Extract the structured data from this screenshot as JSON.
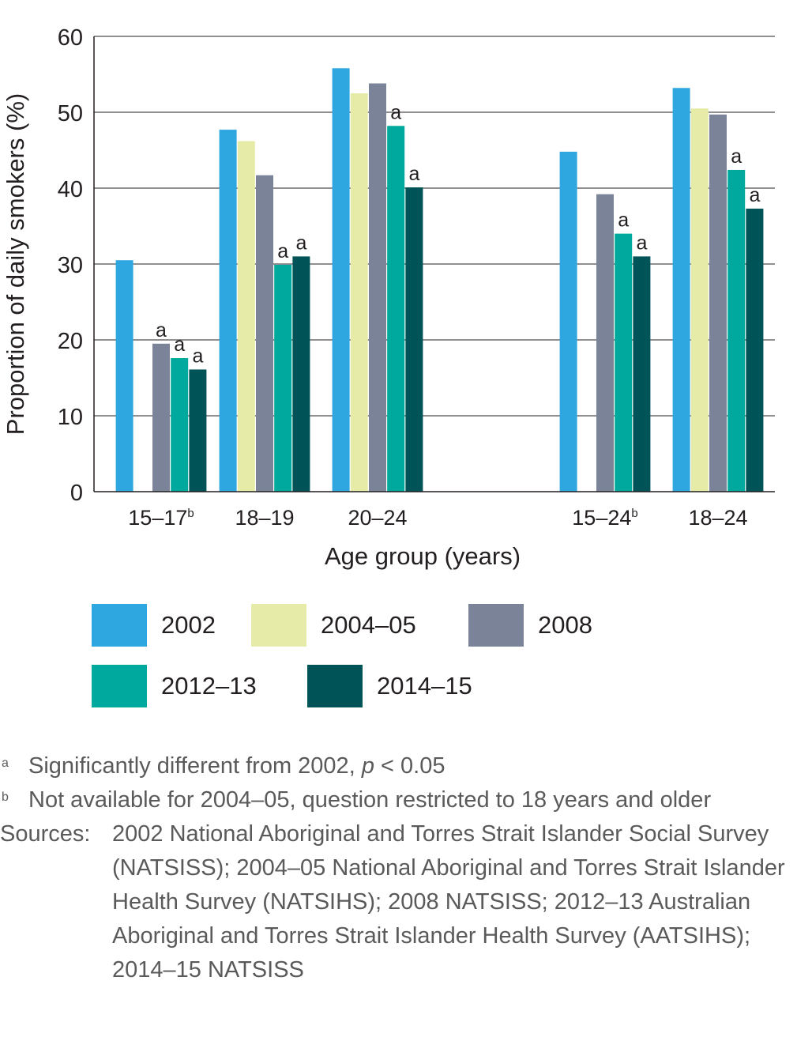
{
  "chart_data": {
    "type": "bar",
    "title": "",
    "ylabel": "Proportion of daily smokers (%)",
    "xlabel": "Age group (years)",
    "ylim": [
      0,
      60
    ],
    "yticks": [
      "0",
      "10",
      "20",
      "30",
      "40",
      "50",
      "60"
    ],
    "grid": true,
    "categories": [
      {
        "label": "15–17",
        "sup": "b"
      },
      {
        "label": "18–19",
        "sup": ""
      },
      {
        "label": "20–24",
        "sup": ""
      },
      {
        "label": "15–24",
        "sup": "b"
      },
      {
        "label": "18–24",
        "sup": ""
      }
    ],
    "series": [
      {
        "name": "2002",
        "color": "#2ea7e0",
        "values": [
          30.5,
          47.7,
          55.8,
          44.8,
          53.2
        ],
        "flags": [
          "",
          "",
          "",
          "",
          ""
        ]
      },
      {
        "name": "2004–05",
        "color": "#e6eca8",
        "values": [
          null,
          46.2,
          52.5,
          null,
          50.5
        ],
        "flags": [
          "",
          "",
          "",
          "",
          ""
        ]
      },
      {
        "name": "2008",
        "color": "#7a8398",
        "values": [
          19.5,
          41.7,
          53.8,
          39.2,
          49.7
        ],
        "flags": [
          "a",
          "",
          "",
          "",
          ""
        ]
      },
      {
        "name": "2012–13",
        "color": "#00a99d",
        "values": [
          17.6,
          29.9,
          48.2,
          34.0,
          42.4
        ],
        "flags": [
          "a",
          "a",
          "a",
          "a",
          "a"
        ]
      },
      {
        "name": "2014–15",
        "color": "#005457",
        "values": [
          16.1,
          31.0,
          40.1,
          31.0,
          37.3
        ],
        "flags": [
          "a",
          "a",
          "a",
          "a",
          "a"
        ]
      }
    ]
  },
  "legend": {
    "items": [
      {
        "label": "2002",
        "color": "#2ea7e0"
      },
      {
        "label": "2004–05",
        "color": "#e6eca8"
      },
      {
        "label": "2008",
        "color": "#7a8398"
      },
      {
        "label": "2012–13",
        "color": "#00a99d"
      },
      {
        "label": "2014–15",
        "color": "#005457"
      }
    ]
  },
  "notes": {
    "a_mark": "a",
    "a_text_before": "Significantly different from 2002, ",
    "a_text_italic": "p",
    "a_text_after": " < 0.05",
    "b_mark": "b",
    "b_text": "Not available for 2004–05, question restricted to 18 years and older",
    "sources_label": "Sources:",
    "sources_text": "2002 National Aboriginal and Torres Strait Islander Social Survey (NATSISS); 2004–05 National Aboriginal and Torres Strait Islander Health Survey (NATSIHS); 2008 NATSISS; 2012–13 Australian Aboriginal and Torres Strait Islander Health Survey (AATSIHS); 2014–15 NATSISS"
  }
}
